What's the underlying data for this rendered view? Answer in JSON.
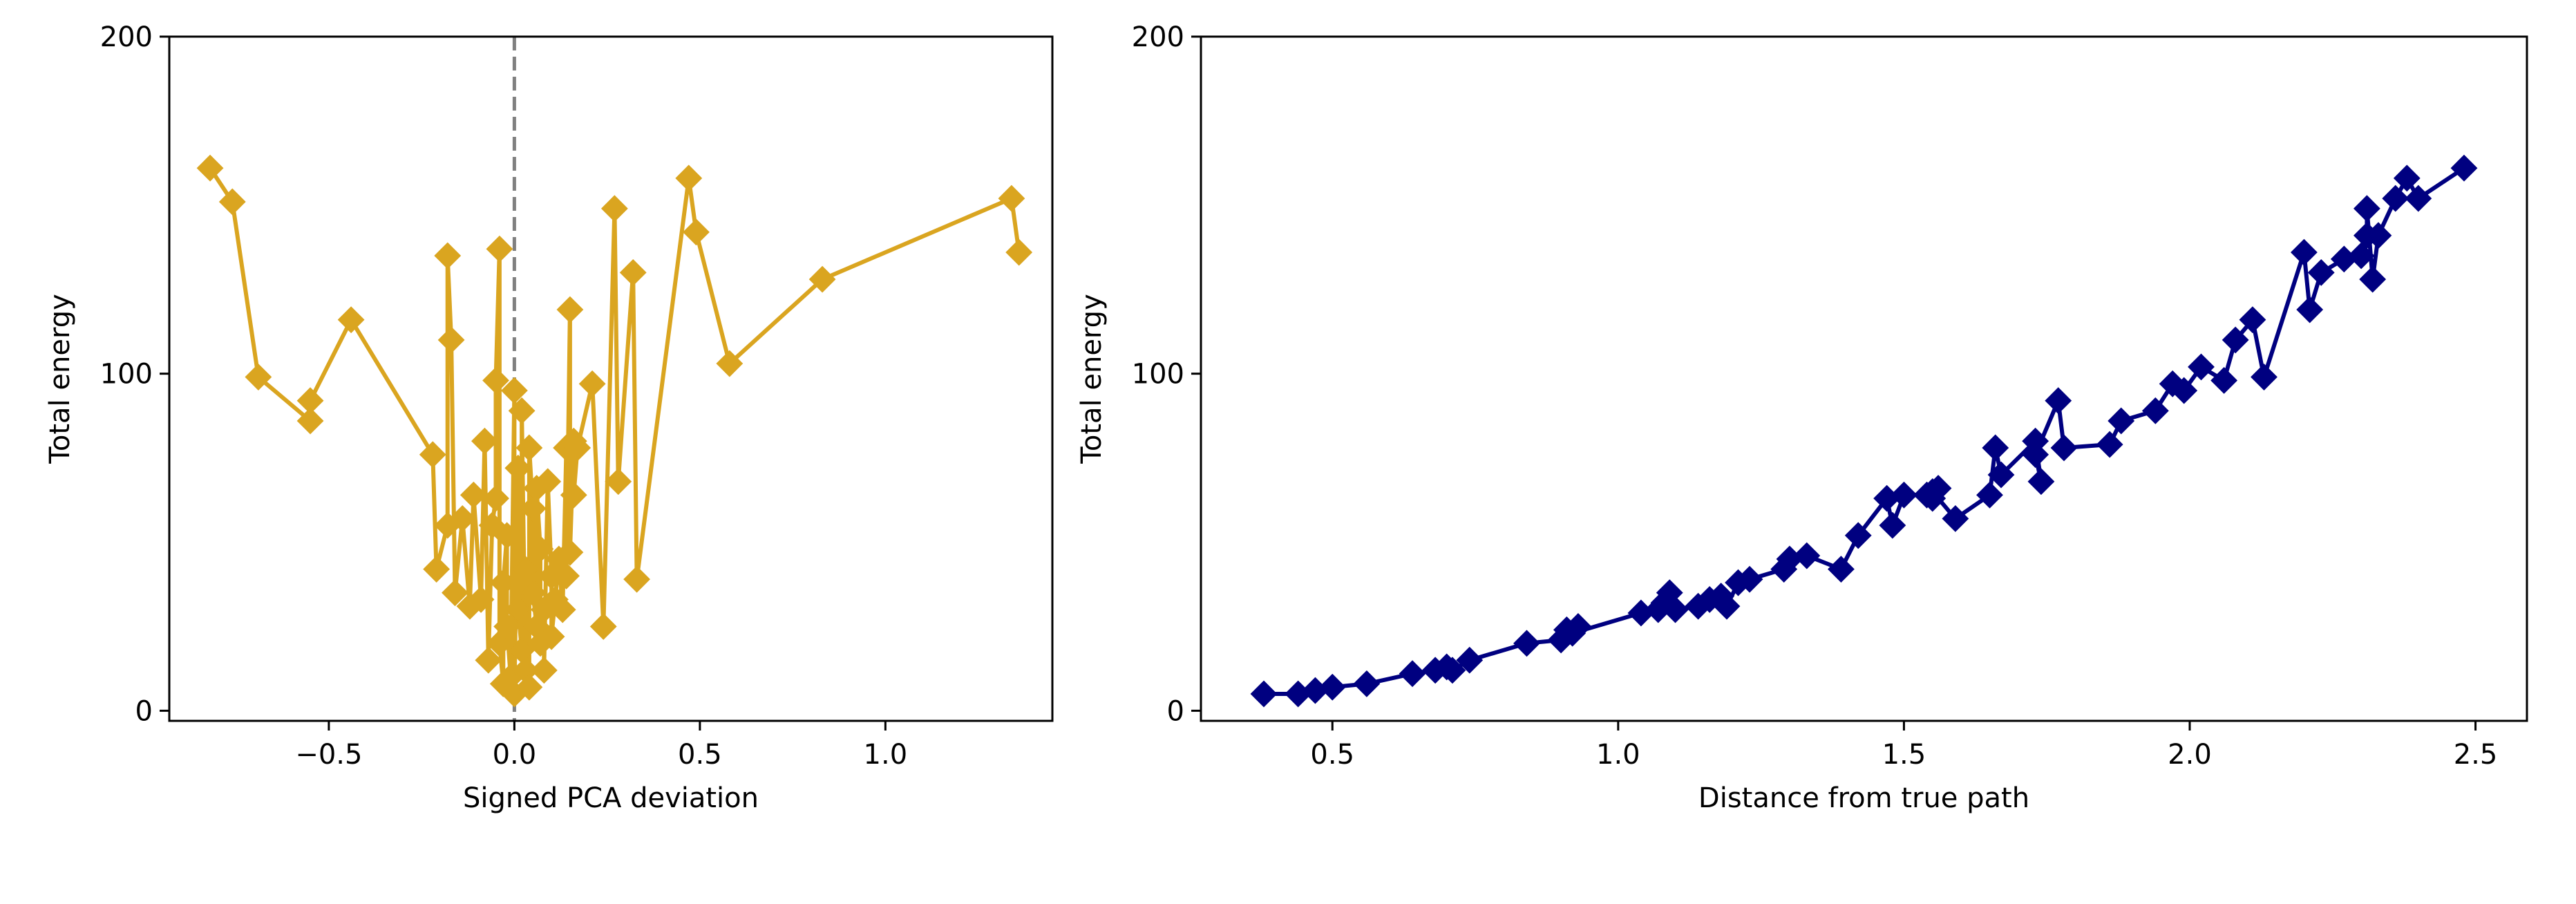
{
  "chart_data": [
    {
      "type": "line",
      "title": "",
      "xlabel": "Signed PCA deviation",
      "ylabel": "Total energy",
      "xlim": [
        -0.93,
        1.45
      ],
      "ylim": [
        -3,
        200
      ],
      "xticks": [
        -0.5,
        0.0,
        0.5,
        1.0
      ],
      "xtick_labels": [
        "−0.5",
        "0.0",
        "0.5",
        "1.0"
      ],
      "yticks": [
        0,
        100,
        200
      ],
      "ytick_labels": [
        "0",
        "100",
        "200"
      ],
      "reference_line": {
        "x": 0,
        "style": "dashed",
        "color": "#808080"
      },
      "color": "#DAA520",
      "marker": "diamond",
      "grid": false,
      "series": [
        {
          "x": [
            -0.82,
            -0.76,
            -0.69,
            -0.55,
            -0.55,
            -0.44,
            -0.22,
            -0.21,
            -0.18,
            -0.18,
            -0.17,
            -0.16,
            -0.14,
            -0.12,
            -0.11,
            -0.09,
            -0.08,
            -0.07,
            -0.06,
            -0.05,
            -0.05,
            -0.04,
            -0.04,
            -0.03,
            -0.03,
            -0.02,
            -0.02,
            -0.01,
            0.0,
            0.0,
            0.01,
            0.01,
            0.02,
            0.02,
            0.03,
            0.03,
            0.04,
            0.04,
            0.05,
            0.05,
            0.06,
            0.06,
            0.07,
            0.07,
            0.08,
            0.08,
            0.09,
            0.1,
            0.1,
            0.11,
            0.12,
            0.13,
            0.14,
            0.14,
            0.15,
            0.15,
            0.16,
            0.16,
            0.17,
            0.21,
            0.24,
            0.27,
            0.28,
            0.32,
            0.33,
            0.47,
            0.49,
            0.58,
            0.83,
            1.34,
            1.36
          ],
          "y": [
            161,
            151,
            99,
            86,
            92,
            116,
            76,
            42,
            55,
            135,
            110,
            35,
            57,
            31,
            64,
            33,
            80,
            15,
            55,
            63,
            98,
            137,
            20,
            8,
            38,
            52,
            25,
            10,
            95,
            5,
            72,
            30,
            18,
            89,
            12,
            42,
            7,
            78,
            60,
            35,
            25,
            66,
            48,
            20,
            30,
            12,
            68,
            40,
            22,
            33,
            45,
            30,
            78,
            40,
            119,
            47,
            80,
            64,
            78,
            97,
            25,
            149,
            68,
            130,
            39,
            158,
            142,
            103,
            128,
            152,
            136
          ]
        }
      ]
    },
    {
      "type": "line",
      "title": "",
      "xlabel": "Distance from true path",
      "ylabel": "Total energy",
      "xlim": [
        0.27,
        2.59
      ],
      "ylim": [
        -3,
        200
      ],
      "xticks": [
        0.5,
        1.0,
        1.5,
        2.0,
        2.5
      ],
      "xtick_labels": [
        "0.5",
        "1.0",
        "1.5",
        "2.0",
        "2.5"
      ],
      "yticks": [
        0,
        100,
        200
      ],
      "ytick_labels": [
        "0",
        "100",
        "200"
      ],
      "color": "#000080",
      "marker": "diamond",
      "grid": false,
      "series": [
        {
          "x": [
            0.38,
            0.44,
            0.47,
            0.5,
            0.56,
            0.64,
            0.68,
            0.7,
            0.71,
            0.74,
            0.84,
            0.9,
            0.91,
            0.93,
            0.92,
            1.04,
            1.07,
            1.09,
            1.08,
            1.1,
            1.14,
            1.16,
            1.18,
            1.19,
            1.21,
            1.23,
            1.29,
            1.3,
            1.33,
            1.39,
            1.42,
            1.47,
            1.48,
            1.5,
            1.54,
            1.55,
            1.56,
            1.55,
            1.59,
            1.65,
            1.66,
            1.67,
            1.73,
            1.74,
            1.73,
            1.77,
            1.78,
            1.86,
            1.88,
            1.94,
            1.97,
            1.99,
            2.02,
            2.06,
            2.08,
            2.11,
            2.13,
            2.2,
            2.21,
            2.23,
            2.27,
            2.3,
            2.31,
            2.31,
            2.32,
            2.33,
            2.36,
            2.38,
            2.4,
            2.48
          ],
          "y": [
            5,
            5,
            6,
            7,
            8,
            11,
            12,
            13,
            12,
            15,
            20,
            21,
            24,
            25,
            23,
            29,
            30,
            35,
            32,
            30,
            31,
            33,
            34,
            31,
            38,
            39,
            42,
            45,
            46,
            42,
            52,
            63,
            55,
            64,
            64,
            63,
            66,
            65,
            57,
            64,
            78,
            70,
            80,
            68,
            76,
            92,
            78,
            79,
            86,
            89,
            97,
            95,
            102,
            98,
            110,
            116,
            99,
            136,
            119,
            130,
            134,
            135,
            141,
            149,
            128,
            141,
            152,
            158,
            152,
            161
          ]
        }
      ]
    }
  ]
}
